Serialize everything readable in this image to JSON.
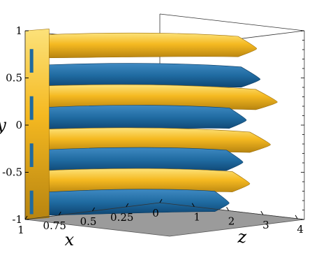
{
  "chart_data": {
    "type": "3d-isosurface",
    "title": "",
    "axes": {
      "x": {
        "label": "x",
        "range": [
          0,
          1
        ],
        "reversed": true,
        "ticks": [
          "1",
          "0.75",
          "0.5",
          "0.25",
          "0"
        ]
      },
      "y": {
        "label": "y",
        "range": [
          -1,
          1
        ],
        "ticks": [
          "1",
          "0.5",
          "0",
          "-0.5",
          "-1"
        ]
      },
      "z": {
        "label": "z",
        "range": [
          0,
          4.2
        ],
        "ticks": [
          "1",
          "2",
          "3",
          "4"
        ]
      }
    },
    "floor_plane": "gray",
    "isosurfaces": [
      {
        "sign": "positive",
        "color": "#F5B921"
      },
      {
        "sign": "negative",
        "color": "#1F6AA0"
      }
    ],
    "streaks": [
      {
        "y": 0.82,
        "sign": "positive",
        "z_end": 3.6
      },
      {
        "y": 0.5,
        "sign": "negative",
        "z_end": 3.7
      },
      {
        "y": 0.28,
        "sign": "positive",
        "z_end": 4.2
      },
      {
        "y": 0.05,
        "sign": "negative",
        "z_end": 3.3
      },
      {
        "y": -0.18,
        "sign": "positive",
        "z_end": 4.0
      },
      {
        "y": -0.4,
        "sign": "negative",
        "z_end": 3.2
      },
      {
        "y": -0.62,
        "sign": "positive",
        "z_end": 3.4
      },
      {
        "y": -0.85,
        "sign": "negative",
        "z_end": 2.8
      }
    ]
  }
}
